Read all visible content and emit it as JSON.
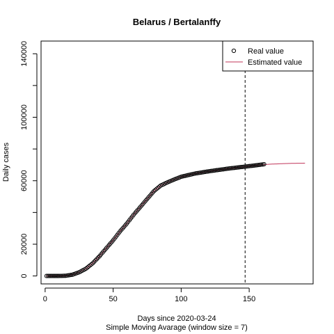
{
  "chart_data": {
    "type": "line",
    "title": "Belarus / Bertalanffy",
    "xlabel": "Days since 2020-03-24",
    "subtitle": "Simple Moving Avarage (window size = 7)",
    "ylabel": "Daily cases",
    "xlim": [
      -3,
      197
    ],
    "ylim": [
      -5000,
      148000
    ],
    "xticks": [
      0,
      50,
      100,
      150
    ],
    "yticks": [
      0,
      20000,
      60000,
      100000,
      140000
    ],
    "ytick_labels": [
      "0",
      "20000",
      "60000",
      "100000",
      "140000"
    ],
    "vline_x": 147,
    "grid": false,
    "legend": {
      "position": "top-right",
      "entries": [
        {
          "label": "Real value",
          "style": "open-circle",
          "color": "#000000"
        },
        {
          "label": "Estimated value",
          "style": "line",
          "color": "#c0355a"
        }
      ]
    },
    "series": [
      {
        "name": "Real value",
        "style": "open-circle",
        "color": "#000000",
        "x_range": [
          1,
          161
        ],
        "curve": [
          [
            1,
            0
          ],
          [
            10,
            0
          ],
          [
            15,
            150
          ],
          [
            20,
            800
          ],
          [
            25,
            2300
          ],
          [
            30,
            4600
          ],
          [
            35,
            8000
          ],
          [
            40,
            12500
          ],
          [
            45,
            17500
          ],
          [
            50,
            22500
          ],
          [
            55,
            28000
          ],
          [
            60,
            33000
          ],
          [
            65,
            38500
          ],
          [
            70,
            43500
          ],
          [
            75,
            48500
          ],
          [
            80,
            53500
          ],
          [
            85,
            57000
          ],
          [
            90,
            59000
          ],
          [
            95,
            60800
          ],
          [
            100,
            62500
          ],
          [
            105,
            63500
          ],
          [
            110,
            64500
          ],
          [
            115,
            65200
          ],
          [
            120,
            65900
          ],
          [
            125,
            66500
          ],
          [
            130,
            67100
          ],
          [
            135,
            67700
          ],
          [
            140,
            68200
          ],
          [
            145,
            68700
          ],
          [
            150,
            69200
          ],
          [
            155,
            69700
          ],
          [
            161,
            70400
          ]
        ]
      },
      {
        "name": "Estimated value",
        "style": "line",
        "color": "#c0355a",
        "x_range": [
          1,
          191
        ],
        "curve": [
          [
            1,
            0
          ],
          [
            10,
            0
          ],
          [
            15,
            150
          ],
          [
            20,
            800
          ],
          [
            25,
            2300
          ],
          [
            30,
            4600
          ],
          [
            35,
            8000
          ],
          [
            40,
            12500
          ],
          [
            45,
            17500
          ],
          [
            50,
            22500
          ],
          [
            55,
            28000
          ],
          [
            60,
            33000
          ],
          [
            65,
            38500
          ],
          [
            70,
            43500
          ],
          [
            75,
            48500
          ],
          [
            80,
            53500
          ],
          [
            85,
            57000
          ],
          [
            90,
            59000
          ],
          [
            95,
            60800
          ],
          [
            100,
            62500
          ],
          [
            105,
            63500
          ],
          [
            110,
            64500
          ],
          [
            115,
            65200
          ],
          [
            120,
            65900
          ],
          [
            125,
            66500
          ],
          [
            130,
            67100
          ],
          [
            135,
            67700
          ],
          [
            140,
            68200
          ],
          [
            145,
            68700
          ],
          [
            150,
            69200
          ],
          [
            155,
            69700
          ],
          [
            160,
            70100
          ],
          [
            165,
            70400
          ],
          [
            170,
            70600
          ],
          [
            175,
            70800
          ],
          [
            180,
            70900
          ],
          [
            185,
            71000
          ],
          [
            191,
            71050
          ]
        ]
      }
    ]
  }
}
